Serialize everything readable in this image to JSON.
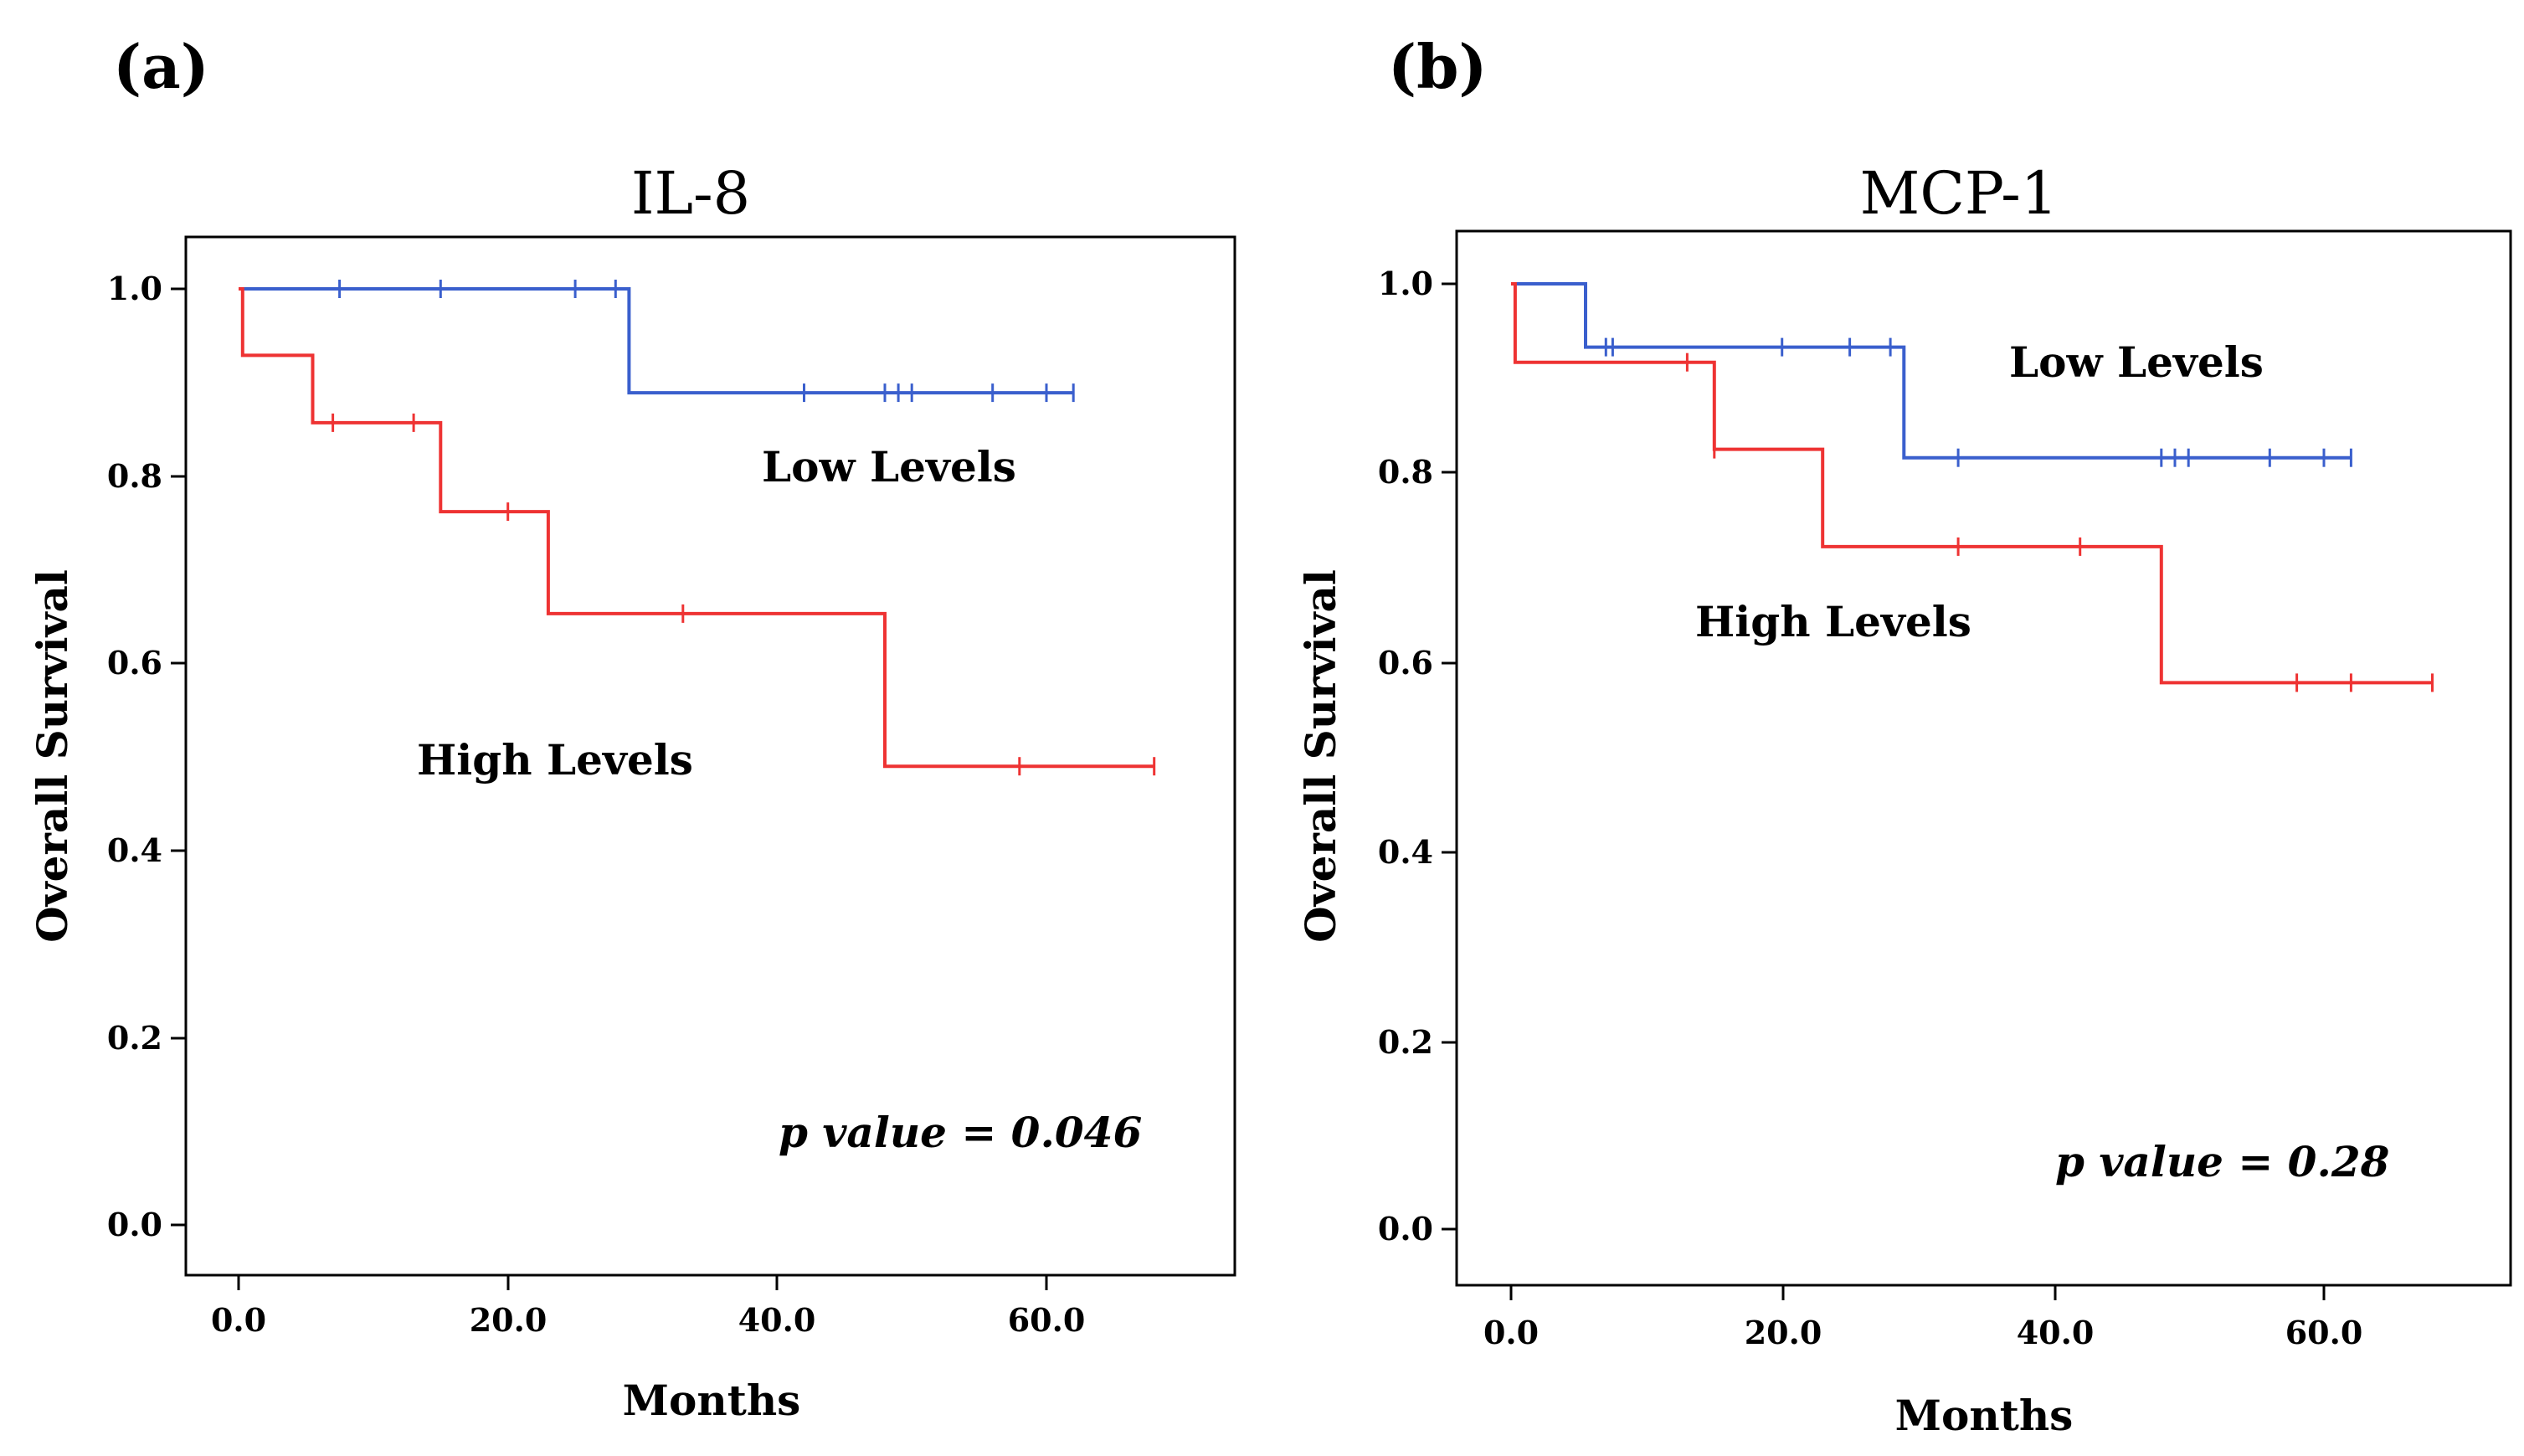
{
  "chart_data": [
    {
      "type": "line",
      "subtype": "kaplan-meier",
      "panel_label": "(a)",
      "title": "IL-8",
      "xlabel": "Months",
      "ylabel": "Overall Survival",
      "xlim": [
        -2,
        75
      ],
      "ylim": [
        -0.06,
        1.06
      ],
      "xticks": [
        0,
        20,
        40,
        60
      ],
      "xtick_labels": [
        "0.0",
        "20.0",
        "40.0",
        "60.0"
      ],
      "yticks": [
        0,
        0.2,
        0.4,
        0.6,
        0.8,
        1.0
      ],
      "ytick_labels": [
        "0.0",
        "0.2",
        "0.4",
        "0.6",
        "0.8",
        "1.0"
      ],
      "annotation": "p value = 0.046",
      "series": [
        {
          "name": "Low Levels",
          "color": "#3a5fcd",
          "steps": [
            [
              0,
              1.0
            ],
            [
              29,
              0.889
            ]
          ],
          "end_x": 62,
          "censored": [
            [
              7.5,
              1.0
            ],
            [
              15,
              1.0
            ],
            [
              25,
              1.0
            ],
            [
              28,
              1.0
            ],
            [
              42,
              0.889
            ],
            [
              48,
              0.889
            ],
            [
              49,
              0.889
            ],
            [
              50,
              0.889
            ],
            [
              56,
              0.889
            ],
            [
              60,
              0.889
            ],
            [
              62,
              0.889
            ]
          ]
        },
        {
          "name": "High Levels",
          "color": "#ee3333",
          "steps": [
            [
              0,
              1.0
            ],
            [
              0.3,
              0.929
            ],
            [
              5.5,
              0.857
            ],
            [
              15,
              0.762
            ],
            [
              23,
              0.653
            ],
            [
              48,
              0.49
            ]
          ],
          "end_x": 68,
          "censored": [
            [
              7,
              0.857
            ],
            [
              13,
              0.857
            ],
            [
              20,
              0.762
            ],
            [
              33,
              0.653
            ],
            [
              58,
              0.49
            ],
            [
              68,
              0.49
            ]
          ]
        }
      ]
    },
    {
      "type": "line",
      "subtype": "kaplan-meier",
      "panel_label": "(b)",
      "title": "MCP-1",
      "xlabel": "Months",
      "ylabel": "Overall Survival",
      "xlim": [
        -4,
        72
      ],
      "ylim": [
        -0.06,
        1.06
      ],
      "xticks": [
        0,
        20,
        40,
        60
      ],
      "xtick_labels": [
        "0.0",
        "20.0",
        "40.0",
        "60.0"
      ],
      "yticks": [
        0,
        0.2,
        0.4,
        0.6,
        0.8,
        1.0
      ],
      "ytick_labels": [
        "0.0",
        "0.2",
        "0.4",
        "0.6",
        "0.8",
        "1.0"
      ],
      "annotation": "p value = 0.28",
      "series": [
        {
          "name": "Low Levels",
          "color": "#3a5fcd",
          "steps": [
            [
              0,
              1.0
            ],
            [
              5.5,
              0.933
            ],
            [
              29,
              0.816
            ]
          ],
          "end_x": 62,
          "censored": [
            [
              7,
              0.933
            ],
            [
              7.5,
              0.933
            ],
            [
              20,
              0.933
            ],
            [
              25,
              0.933
            ],
            [
              28,
              0.933
            ],
            [
              33,
              0.816
            ],
            [
              48,
              0.816
            ],
            [
              49,
              0.816
            ],
            [
              50,
              0.816
            ],
            [
              56,
              0.816
            ],
            [
              60,
              0.816
            ],
            [
              62,
              0.816
            ]
          ]
        },
        {
          "name": "High Levels",
          "color": "#ee3333",
          "steps": [
            [
              0,
              1.0
            ],
            [
              0.3,
              0.917
            ],
            [
              15,
              0.825
            ],
            [
              23,
              0.722
            ],
            [
              48,
              0.578
            ]
          ],
          "end_x": 68,
          "censored": [
            [
              13,
              0.917
            ],
            [
              15,
              0.825
            ],
            [
              33,
              0.722
            ],
            [
              42,
              0.722
            ],
            [
              58,
              0.578
            ],
            [
              62,
              0.578
            ],
            [
              68,
              0.578
            ]
          ]
        }
      ]
    }
  ]
}
